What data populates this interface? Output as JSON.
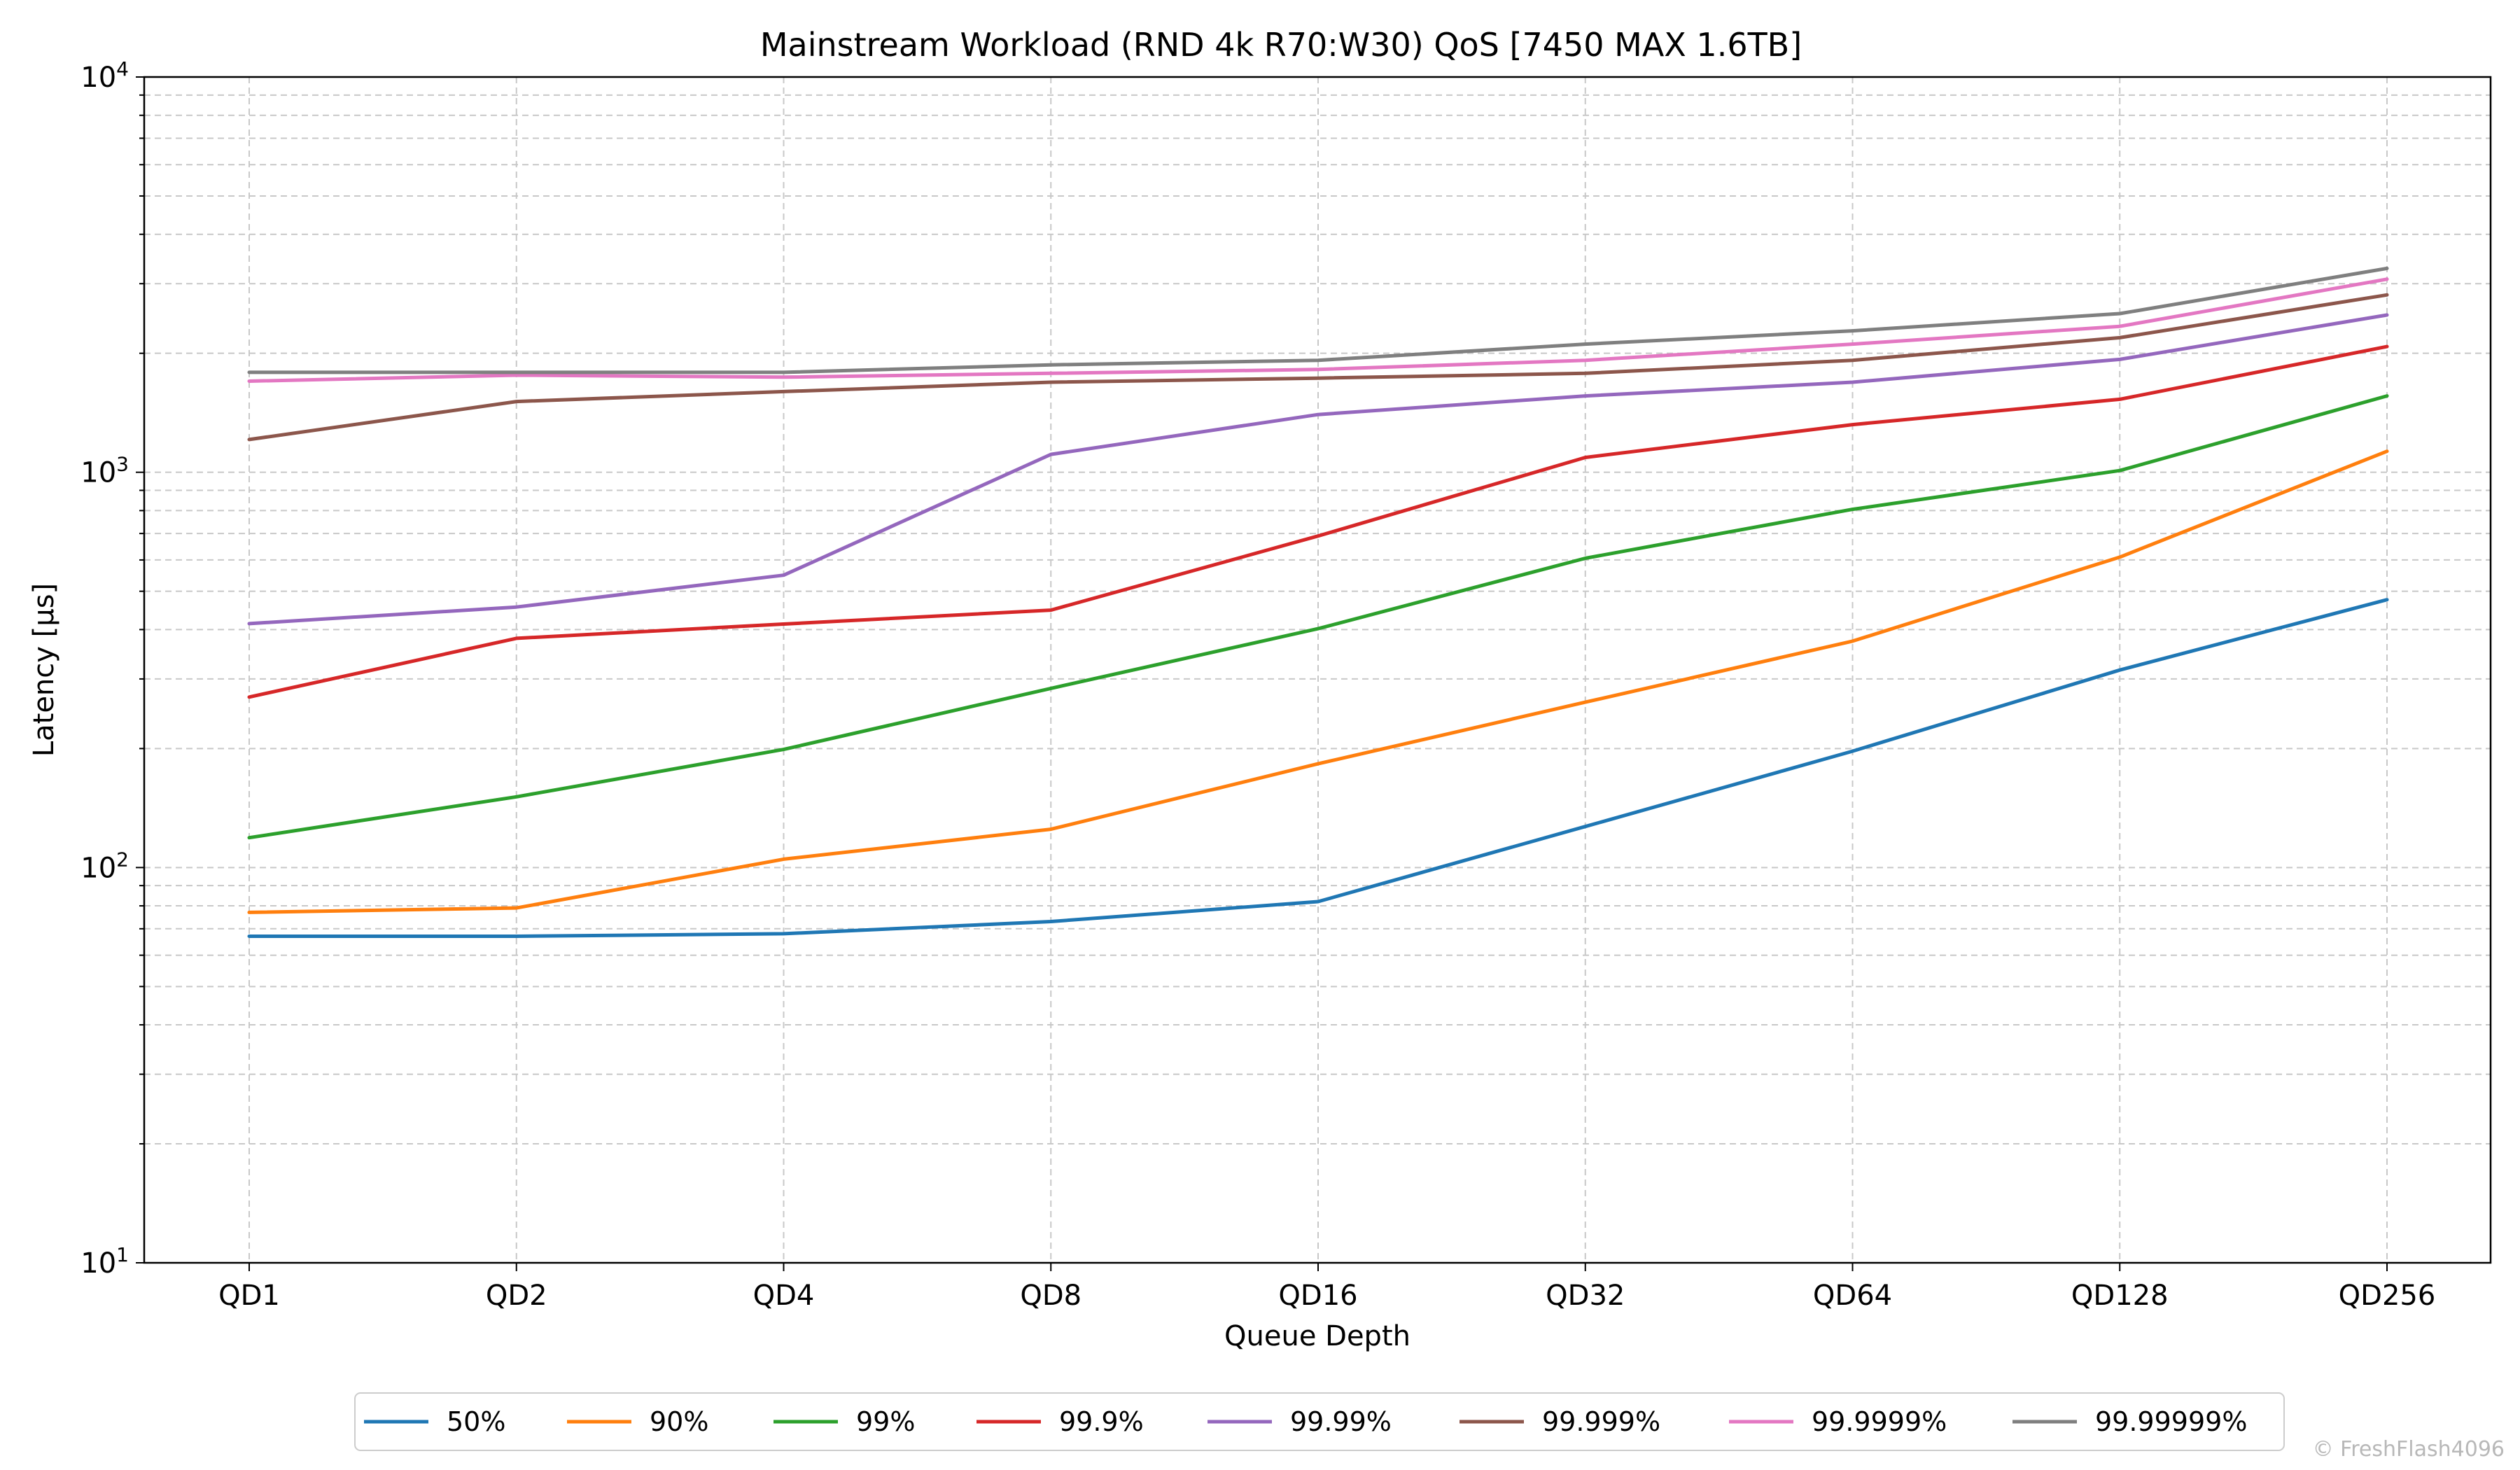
{
  "chart_data": {
    "type": "line",
    "title": "Mainstream Workload (RND 4k R70:W30) QoS [7450 MAX 1.6TB]",
    "xlabel": "Queue Depth",
    "ylabel": "Latency [µs]",
    "yscale": "log",
    "ylim": [
      10,
      10000
    ],
    "y_ticks": [
      {
        "base": "10",
        "exp": "1",
        "value": 10
      },
      {
        "base": "10",
        "exp": "2",
        "value": 100
      },
      {
        "base": "10",
        "exp": "3",
        "value": 1000
      },
      {
        "base": "10",
        "exp": "4",
        "value": 10000
      }
    ],
    "categories": [
      "QD1",
      "QD2",
      "QD4",
      "QD8",
      "QD16",
      "QD32",
      "QD64",
      "QD128",
      "QD256"
    ],
    "grid": true,
    "legend_position": "bottom-center",
    "series": [
      {
        "name": "50%",
        "color": "#1f77b4",
        "values": [
          67,
          67,
          68,
          73,
          82,
          127,
          197,
          316,
          476
        ]
      },
      {
        "name": "90%",
        "color": "#ff7f0e",
        "values": [
          77,
          79,
          105,
          125,
          183,
          262,
          374,
          610,
          1130
        ]
      },
      {
        "name": "99%",
        "color": "#2ca02c",
        "values": [
          119,
          151,
          199,
          284,
          402,
          606,
          806,
          1010,
          1560
        ]
      },
      {
        "name": "99.9%",
        "color": "#d62728",
        "values": [
          270,
          380,
          413,
          448,
          690,
          1090,
          1320,
          1530,
          2080
        ]
      },
      {
        "name": "99.99%",
        "color": "#9467bd",
        "values": [
          414,
          456,
          549,
          1110,
          1400,
          1560,
          1690,
          1930,
          2500
        ]
      },
      {
        "name": "99.999%",
        "color": "#8c564b",
        "values": [
          1210,
          1510,
          1600,
          1690,
          1730,
          1780,
          1920,
          2190,
          2810
        ]
      },
      {
        "name": "99.9999%",
        "color": "#e377c2",
        "values": [
          1700,
          1760,
          1740,
          1780,
          1820,
          1920,
          2110,
          2340,
          3080
        ]
      },
      {
        "name": "99.99999%",
        "color": "#7f7f7f",
        "values": [
          1790,
          1790,
          1790,
          1870,
          1920,
          2110,
          2280,
          2520,
          3280
        ]
      }
    ]
  },
  "watermark": "© FreshFlash4096"
}
